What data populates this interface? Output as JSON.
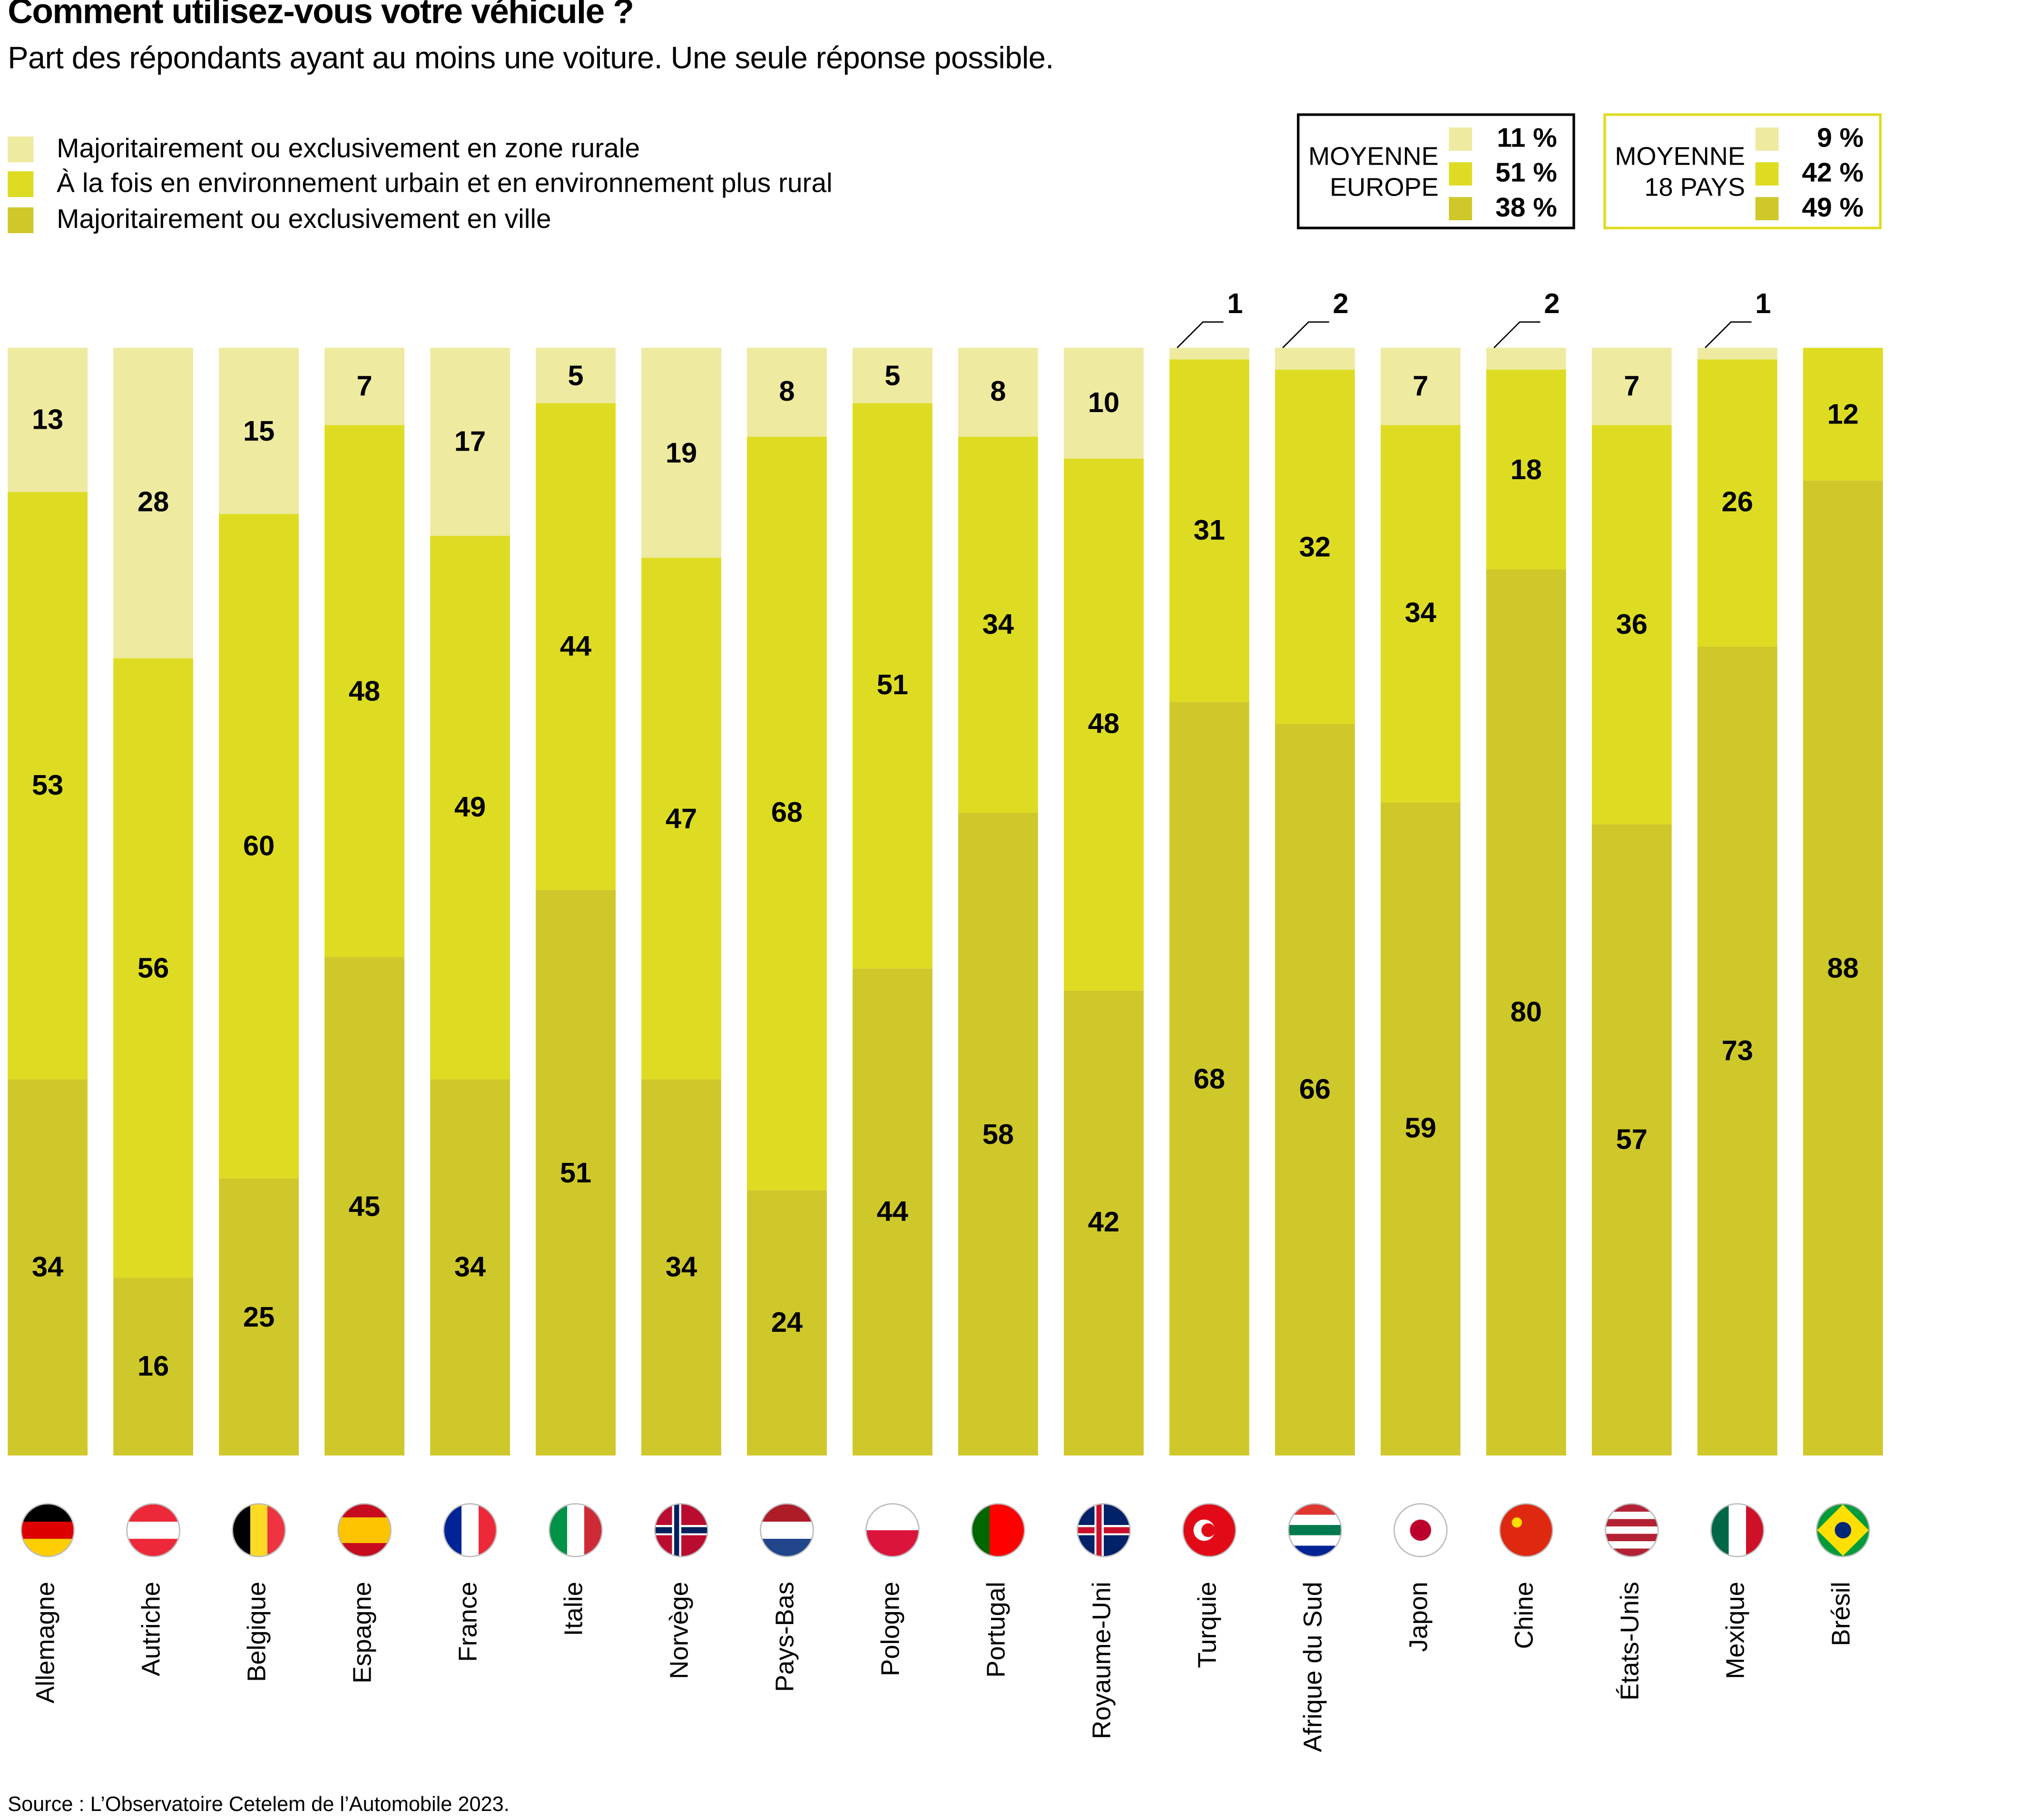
{
  "title": "Comment utilisez-vous votre véhicule ?",
  "subtitle": "Part des répondants ayant au moins une voiture. Une seule réponse possible.",
  "source": "Source : L’Observatoire Cetelem de l’Automobile 2023.",
  "colors": {
    "rural": "#eeeaa0",
    "mixte": "#dedc22",
    "ville": "#cfc82a"
  },
  "legend": [
    {
      "key": "rural",
      "label": "Majoritairement ou exclusivement en zone rurale"
    },
    {
      "key": "mixte",
      "label": "À la fois en environnement urbain et en environnement plus rural"
    },
    {
      "key": "ville",
      "label": "Majoritairement ou exclusivement en ville"
    }
  ],
  "averages": [
    {
      "label1": "MOYENNE",
      "label2": "EUROPE",
      "border": "#000000",
      "values": [
        "11 %",
        "51 %",
        "38 %"
      ]
    },
    {
      "label1": "MOYENNE",
      "label2": "18 PAYS",
      "border": "#dedc22",
      "values": [
        "9 %",
        "42 %",
        "49 %"
      ]
    }
  ],
  "chart_data": {
    "type": "bar",
    "stacked": true,
    "orientation": "vertical",
    "ylim": [
      0,
      100
    ],
    "grid": false,
    "legend_position": "top-left",
    "categories": [
      "Allemagne",
      "Autriche",
      "Belgique",
      "Espagne",
      "France",
      "Italie",
      "Norvège",
      "Pays-Bas",
      "Pologne",
      "Portugal",
      "Royaume-Uni",
      "Turquie",
      "Afrique du Sud",
      "Japon",
      "Chine",
      "États-Unis",
      "Mexique",
      "Brésil"
    ],
    "series": [
      {
        "name": "Majoritairement ou exclusivement en ville",
        "key": "ville",
        "values": [
          34,
          16,
          25,
          45,
          34,
          51,
          34,
          24,
          44,
          58,
          42,
          68,
          66,
          59,
          80,
          57,
          73,
          88
        ]
      },
      {
        "name": "À la fois en environnement urbain et en environnement plus rural",
        "key": "mixte",
        "values": [
          53,
          56,
          60,
          48,
          49,
          44,
          47,
          68,
          51,
          34,
          48,
          31,
          32,
          34,
          18,
          36,
          26,
          12
        ]
      },
      {
        "name": "Majoritairement ou exclusivement en zone rurale",
        "key": "rural",
        "values": [
          13,
          28,
          15,
          7,
          17,
          5,
          19,
          8,
          5,
          8,
          10,
          1,
          2,
          7,
          2,
          7,
          1,
          0
        ]
      }
    ]
  },
  "flags": [
    {
      "icon": "flag-germany-icon",
      "dir": "h",
      "colors": [
        "#000000",
        "#dd0000",
        "#ffce00"
      ]
    },
    {
      "icon": "flag-austria-icon",
      "dir": "h",
      "colors": [
        "#ed2939",
        "#ffffff",
        "#ed2939"
      ]
    },
    {
      "icon": "flag-belgium-icon",
      "dir": "v",
      "colors": [
        "#000000",
        "#fdda24",
        "#ef3340"
      ]
    },
    {
      "icon": "flag-spain-icon",
      "dir": "h",
      "colors": [
        "#c60b1e",
        "#ffc400",
        "#ffc400",
        "#c60b1e"
      ]
    },
    {
      "icon": "flag-france-icon",
      "dir": "v",
      "colors": [
        "#002395",
        "#ffffff",
        "#ed2939"
      ]
    },
    {
      "icon": "flag-italy-icon",
      "dir": "v",
      "colors": [
        "#009246",
        "#ffffff",
        "#ce2b37"
      ]
    },
    {
      "icon": "flag-norway-icon",
      "dir": "cross",
      "colors": [
        "#ba0c2f",
        "#00205b",
        "#ffffff"
      ]
    },
    {
      "icon": "flag-netherlands-icon",
      "dir": "h",
      "colors": [
        "#ae1c28",
        "#ffffff",
        "#21468b"
      ]
    },
    {
      "icon": "flag-poland-icon",
      "dir": "h",
      "colors": [
        "#ffffff",
        "#dc143c"
      ]
    },
    {
      "icon": "flag-portugal-icon",
      "dir": "v",
      "colors": [
        "#006600",
        "#ff0000",
        "#ff0000"
      ]
    },
    {
      "icon": "flag-uk-icon",
      "dir": "cross",
      "colors": [
        "#012169",
        "#c8102e",
        "#ffffff"
      ]
    },
    {
      "icon": "flag-turkey-icon",
      "dir": "crescent",
      "colors": [
        "#e30a17",
        "#ffffff"
      ]
    },
    {
      "icon": "flag-south-africa-icon",
      "dir": "h",
      "colors": [
        "#de3831",
        "#ffffff",
        "#007a4d",
        "#ffffff",
        "#002395"
      ]
    },
    {
      "icon": "flag-japan-icon",
      "dir": "dot",
      "colors": [
        "#ffffff",
        "#bc002d"
      ]
    },
    {
      "icon": "flag-china-icon",
      "dir": "star",
      "colors": [
        "#de2910",
        "#ffde00"
      ]
    },
    {
      "icon": "flag-usa-icon",
      "dir": "h",
      "colors": [
        "#b22234",
        "#ffffff",
        "#b22234",
        "#ffffff",
        "#b22234",
        "#ffffff",
        "#b22234"
      ]
    },
    {
      "icon": "flag-mexico-icon",
      "dir": "v",
      "colors": [
        "#006847",
        "#ffffff",
        "#ce1126"
      ]
    },
    {
      "icon": "flag-brazil-icon",
      "dir": "diamond",
      "colors": [
        "#009c3b",
        "#ffdf00",
        "#002776"
      ]
    }
  ]
}
